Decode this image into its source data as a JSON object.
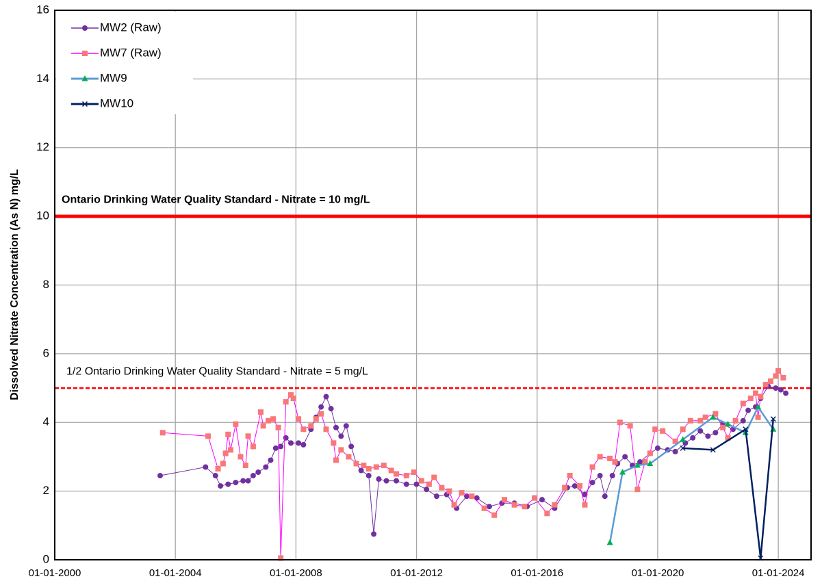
{
  "chart_data": {
    "type": "line",
    "y_label": "Dissolved Nitrate Concentration (As N)  mg/L",
    "xlim": [
      "2000-01-01",
      "2025-02-01"
    ],
    "xticks": [
      {
        "value": "2000-01-01",
        "label": "01-01-2000"
      },
      {
        "value": "2004-01-01",
        "label": "01-01-2004"
      },
      {
        "value": "2008-01-01",
        "label": "01-01-2008"
      },
      {
        "value": "2012-01-01",
        "label": "01-01-2012"
      },
      {
        "value": "2016-01-01",
        "label": "01-01-2016"
      },
      {
        "value": "2020-01-01",
        "label": "01-01-2020"
      },
      {
        "value": "2024-01-01",
        "label": "01-01-2024"
      }
    ],
    "ylim": [
      0,
      16
    ],
    "yticks": [
      0,
      2,
      4,
      6,
      8,
      10,
      12,
      14,
      16
    ],
    "grid": true,
    "legend": "upper left",
    "reference_lines": [
      {
        "value": 10,
        "label": "Ontario Drinking Water Quality Standard - Nitrate = 10 mg/L",
        "color": "#ff0000",
        "style": "solid"
      },
      {
        "value": 5,
        "label": "1/2 Ontario Drinking Water Quality Standard - Nitrate = 5 mg/L",
        "color": "#ff0000",
        "style": "dashed"
      }
    ],
    "series": [
      {
        "name": "MW2 (Raw)",
        "color": "#7030a0",
        "marker_color": "#7030a0",
        "marker": "circle",
        "x": [
          "2003-07-01",
          "2005-01-01",
          "2005-05-01",
          "2005-07-01",
          "2005-10-01",
          "2006-01-01",
          "2006-04-01",
          "2006-06-01",
          "2006-08-01",
          "2006-10-01",
          "2007-01-01",
          "2007-03-01",
          "2007-05-01",
          "2007-07-01",
          "2007-09-01",
          "2007-11-01",
          "2008-02-01",
          "2008-04-01",
          "2008-07-01",
          "2008-09-01",
          "2008-11-01",
          "2009-01-01",
          "2009-03-01",
          "2009-05-01",
          "2009-07-01",
          "2009-09-01",
          "2009-11-01",
          "2010-01-01",
          "2010-03-01",
          "2010-06-01",
          "2010-08-01",
          "2010-10-01",
          "2011-01-01",
          "2011-05-01",
          "2011-09-01",
          "2012-01-01",
          "2012-05-01",
          "2012-09-01",
          "2013-01-01",
          "2013-05-01",
          "2013-09-01",
          "2014-01-01",
          "2014-06-01",
          "2014-11-01",
          "2015-04-01",
          "2015-09-01",
          "2016-03-01",
          "2016-08-01",
          "2017-01-01",
          "2017-04-01",
          "2017-08-01",
          "2017-11-01",
          "2018-02-01",
          "2018-04-01",
          "2018-07-01",
          "2018-09-01",
          "2018-12-01",
          "2019-03-01",
          "2019-06-01",
          "2019-10-01",
          "2020-01-01",
          "2020-05-01",
          "2020-08-01",
          "2020-12-01",
          "2021-03-01",
          "2021-06-01",
          "2021-09-01",
          "2021-12-01",
          "2022-03-01",
          "2022-07-01",
          "2022-11-01",
          "2023-01-01",
          "2023-04-01",
          "2023-06-01",
          "2023-09-01",
          "2023-12-01",
          "2024-02-01",
          "2024-04-01"
        ],
        "values": [
          2.45,
          2.7,
          2.45,
          2.15,
          2.2,
          2.25,
          2.3,
          2.3,
          2.45,
          2.55,
          2.7,
          2.9,
          3.25,
          3.3,
          3.55,
          3.4,
          3.4,
          3.35,
          3.8,
          4.15,
          4.45,
          4.75,
          4.4,
          3.85,
          3.6,
          3.9,
          3.3,
          2.8,
          2.6,
          2.45,
          0.75,
          2.35,
          2.3,
          2.3,
          2.2,
          2.2,
          2.05,
          1.85,
          1.9,
          1.5,
          1.85,
          1.8,
          1.55,
          1.65,
          1.65,
          1.55,
          1.75,
          1.5,
          2.1,
          2.15,
          1.9,
          2.25,
          2.45,
          1.85,
          2.45,
          2.8,
          3.0,
          2.75,
          2.85,
          3.1,
          3.25,
          3.2,
          3.15,
          3.4,
          3.55,
          3.75,
          3.6,
          3.7,
          3.95,
          3.8,
          4.05,
          4.35,
          4.45,
          4.7,
          5.05,
          5.0,
          4.95,
          4.85
        ]
      },
      {
        "name": "MW7 (Raw)",
        "color": "#ff00ff",
        "marker_color": "#f87878",
        "marker": "square",
        "x": [
          "2003-08-01",
          "2005-02-01",
          "2005-06-01",
          "2005-08-01",
          "2005-09-01",
          "2005-10-01",
          "2005-11-01",
          "2006-01-01",
          "2006-03-01",
          "2006-05-01",
          "2006-06-01",
          "2006-08-01",
          "2006-11-01",
          "2006-12-01",
          "2007-02-01",
          "2007-04-01",
          "2007-06-01",
          "2007-07-01",
          "2007-09-01",
          "2007-11-01",
          "2007-12-01",
          "2008-02-01",
          "2008-04-01",
          "2008-07-01",
          "2008-09-01",
          "2008-11-01",
          "2009-01-01",
          "2009-04-01",
          "2009-05-01",
          "2009-07-01",
          "2009-10-01",
          "2010-01-01",
          "2010-04-01",
          "2010-06-01",
          "2010-09-01",
          "2010-12-01",
          "2011-03-01",
          "2011-05-01",
          "2011-09-01",
          "2011-12-01",
          "2012-03-01",
          "2012-06-01",
          "2012-08-01",
          "2012-11-01",
          "2013-02-01",
          "2013-04-01",
          "2013-07-01",
          "2013-11-01",
          "2014-04-01",
          "2014-08-01",
          "2014-12-01",
          "2015-04-01",
          "2015-08-01",
          "2015-12-01",
          "2016-05-01",
          "2016-08-01",
          "2016-12-01",
          "2017-02-01",
          "2017-06-01",
          "2017-08-01",
          "2017-11-01",
          "2018-02-01",
          "2018-06-01",
          "2018-08-01",
          "2018-10-01",
          "2019-02-01",
          "2019-05-01",
          "2019-08-01",
          "2019-10-01",
          "2019-12-01",
          "2020-03-01",
          "2020-08-01",
          "2020-11-01",
          "2021-02-01",
          "2021-06-01",
          "2021-08-01",
          "2021-12-01",
          "2022-03-01",
          "2022-05-01",
          "2022-08-01",
          "2022-11-01",
          "2023-02-01",
          "2023-04-01",
          "2023-05-01",
          "2023-06-01",
          "2023-08-01",
          "2023-10-01",
          "2023-12-01",
          "2024-01-01",
          "2024-03-01"
        ],
        "values": [
          3.7,
          3.6,
          2.65,
          2.8,
          3.1,
          3.65,
          3.2,
          3.95,
          3.0,
          2.75,
          3.6,
          3.3,
          4.3,
          3.9,
          4.05,
          4.1,
          3.85,
          0.05,
          4.6,
          4.8,
          4.7,
          4.1,
          3.8,
          3.9,
          4.1,
          4.25,
          3.8,
          3.4,
          2.9,
          3.2,
          3.0,
          2.8,
          2.75,
          2.65,
          2.7,
          2.75,
          2.6,
          2.5,
          2.45,
          2.55,
          2.3,
          2.2,
          2.4,
          2.1,
          2.0,
          1.6,
          1.95,
          1.85,
          1.5,
          1.3,
          1.75,
          1.6,
          1.55,
          1.8,
          1.35,
          1.6,
          2.1,
          2.45,
          2.15,
          1.6,
          2.7,
          3.0,
          2.95,
          2.85,
          4.0,
          3.9,
          2.05,
          2.85,
          3.1,
          3.8,
          3.75,
          3.45,
          3.8,
          4.05,
          4.05,
          4.15,
          4.25,
          3.85,
          3.55,
          4.05,
          4.55,
          4.7,
          4.85,
          4.15,
          4.75,
          5.1,
          5.2,
          5.35,
          5.5,
          5.3
        ]
      },
      {
        "name": "MW9",
        "color": "#5b9bd5",
        "marker_color": "#00b050",
        "marker": "triangle",
        "x": [
          "2018-06-01",
          "2018-11-01",
          "2019-05-01",
          "2019-10-01",
          "2020-11-01",
          "2021-11-01",
          "2022-05-01",
          "2022-12-01",
          "2023-05-01",
          "2023-11-01"
        ],
        "values": [
          0.5,
          2.55,
          2.75,
          2.8,
          3.5,
          4.15,
          3.95,
          3.7,
          4.45,
          3.8
        ]
      },
      {
        "name": "MW10",
        "color": "#002060",
        "marker_color": "#002060",
        "marker": "x",
        "x": [
          "2020-11-01",
          "2021-11-01",
          "2022-12-01",
          "2023-06-01",
          "2023-11-01"
        ],
        "values": [
          3.25,
          3.2,
          3.8,
          0.05,
          4.1
        ]
      }
    ]
  }
}
